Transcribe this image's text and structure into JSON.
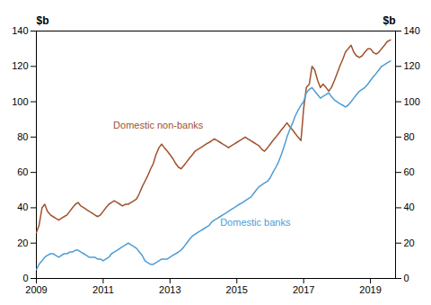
{
  "chart_data": {
    "type": "line",
    "ylabel": "$b",
    "y2label": "$b",
    "x": [
      2009.0,
      2009.08,
      2009.17,
      2009.25,
      2009.33,
      2009.42,
      2009.5,
      2009.58,
      2009.67,
      2009.75,
      2009.83,
      2009.92,
      2010.0,
      2010.08,
      2010.17,
      2010.25,
      2010.33,
      2010.42,
      2010.5,
      2010.58,
      2010.67,
      2010.75,
      2010.83,
      2010.92,
      2011.0,
      2011.08,
      2011.17,
      2011.25,
      2011.33,
      2011.42,
      2011.5,
      2011.58,
      2011.67,
      2011.75,
      2011.83,
      2011.92,
      2012.0,
      2012.08,
      2012.17,
      2012.25,
      2012.33,
      2012.42,
      2012.5,
      2012.58,
      2012.67,
      2012.75,
      2012.83,
      2012.92,
      2013.0,
      2013.08,
      2013.17,
      2013.25,
      2013.33,
      2013.42,
      2013.5,
      2013.58,
      2013.67,
      2013.75,
      2013.83,
      2013.92,
      2014.0,
      2014.08,
      2014.17,
      2014.25,
      2014.33,
      2014.42,
      2014.5,
      2014.58,
      2014.67,
      2014.75,
      2014.83,
      2014.92,
      2015.0,
      2015.08,
      2015.17,
      2015.25,
      2015.33,
      2015.42,
      2015.5,
      2015.58,
      2015.67,
      2015.75,
      2015.83,
      2015.92,
      2016.0,
      2016.08,
      2016.17,
      2016.25,
      2016.33,
      2016.42,
      2016.5,
      2016.58,
      2016.67,
      2016.75,
      2016.83,
      2016.92,
      2017.0,
      2017.08,
      2017.17,
      2017.25,
      2017.33,
      2017.42,
      2017.5,
      2017.58,
      2017.67,
      2017.75,
      2017.83,
      2017.92,
      2018.0,
      2018.08,
      2018.17,
      2018.25,
      2018.33,
      2018.42,
      2018.5,
      2018.58,
      2018.67,
      2018.75,
      2018.83,
      2018.92,
      2019.0,
      2019.08,
      2019.17,
      2019.25,
      2019.33,
      2019.42,
      2019.5,
      2019.6
    ],
    "series": [
      {
        "name": "Domestic non-banks",
        "color": "#a0522d",
        "values": [
          26,
          30,
          40,
          42,
          38,
          36,
          35,
          34,
          33,
          34,
          35,
          36,
          38,
          40,
          42,
          43,
          41,
          40,
          39,
          38,
          37,
          36,
          35,
          36,
          38,
          40,
          42,
          43,
          44,
          43,
          42,
          41,
          42,
          42,
          43,
          44,
          45,
          48,
          52,
          55,
          58,
          62,
          65,
          70,
          74,
          76,
          74,
          72,
          70,
          68,
          65,
          63,
          62,
          64,
          66,
          68,
          70,
          72,
          73,
          74,
          75,
          76,
          77,
          78,
          79,
          78,
          77,
          76,
          75,
          74,
          75,
          76,
          77,
          78,
          79,
          80,
          79,
          78,
          77,
          76,
          75,
          73,
          72,
          74,
          76,
          78,
          80,
          82,
          84,
          86,
          88,
          86,
          84,
          82,
          80,
          78,
          96,
          108,
          110,
          120,
          118,
          112,
          108,
          110,
          108,
          106,
          108,
          112,
          116,
          120,
          124,
          128,
          130,
          132,
          128,
          126,
          125,
          126,
          128,
          130,
          130,
          128,
          127,
          128,
          130,
          132,
          134,
          135
        ]
      },
      {
        "name": "Domestic banks",
        "color": "#4e9cd4",
        "values": [
          5,
          8,
          10,
          12,
          13,
          14,
          14,
          13,
          12,
          13,
          14,
          14,
          15,
          15,
          16,
          16,
          15,
          14,
          13,
          12,
          12,
          12,
          11,
          11,
          10,
          11,
          12,
          14,
          15,
          16,
          17,
          18,
          19,
          20,
          19,
          18,
          17,
          15,
          13,
          10,
          9,
          8,
          8,
          9,
          10,
          11,
          11,
          11,
          12,
          13,
          14,
          15,
          16,
          18,
          20,
          22,
          24,
          25,
          26,
          27,
          28,
          29,
          30,
          32,
          33,
          34,
          35,
          36,
          37,
          38,
          39,
          40,
          41,
          42,
          43,
          44,
          45,
          46,
          48,
          50,
          52,
          53,
          54,
          55,
          57,
          60,
          63,
          66,
          70,
          75,
          80,
          84,
          88,
          92,
          95,
          98,
          100,
          105,
          107,
          108,
          106,
          104,
          102,
          103,
          104,
          105,
          103,
          101,
          100,
          99,
          98,
          97,
          98,
          100,
          102,
          104,
          106,
          107,
          108,
          110,
          112,
          114,
          116,
          118,
          120,
          121,
          122,
          123
        ]
      }
    ],
    "annotations": [
      {
        "text": "Domestic non-banks",
        "x": 2011.3,
        "y": 85,
        "color": "#a0522d"
      },
      {
        "text": "Domestic banks",
        "x": 2014.5,
        "y": 30,
        "color": "#4e9cd4"
      }
    ],
    "xlim": [
      2009.0,
      2019.75
    ],
    "xticks": [
      2009,
      2011,
      2013,
      2015,
      2017,
      2019
    ],
    "ylim": [
      0,
      140
    ],
    "yticks": [
      0,
      20,
      40,
      60,
      80,
      100,
      120,
      140
    ],
    "y2lim": [
      0,
      140
    ],
    "y2ticks": [
      0,
      20,
      40,
      60,
      80,
      100,
      120,
      140
    ],
    "grid": false
  }
}
